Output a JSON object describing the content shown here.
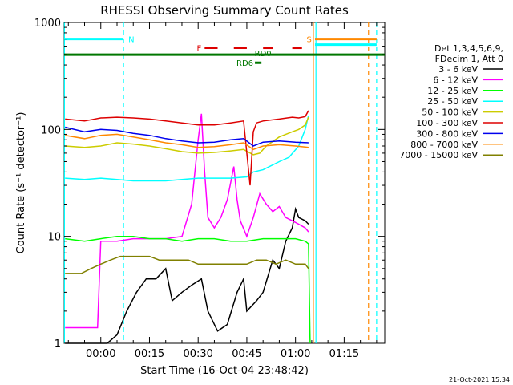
{
  "chart_data": {
    "type": "line",
    "title": "RHESSI Observing Summary Count Rates",
    "xlabel": "Start Time (16-Oct-04 23:48:42)",
    "ylabel": "Count Rate (s⁻¹ detector⁻¹)",
    "x_unit": "minutes after 00:00",
    "xlim": [
      -11.3,
      87.5
    ],
    "ylim": [
      1,
      1000
    ],
    "y_scale": "log",
    "x_tick_labels": [
      "00:00",
      "00:15",
      "00:30",
      "00:45",
      "01:00",
      "01:15"
    ],
    "x_ticks": [
      0,
      15,
      30,
      45,
      60,
      75
    ],
    "y_tick_labels": [
      "1",
      "10",
      "100",
      "1000"
    ],
    "y_ticks": [
      1,
      10,
      100,
      1000
    ],
    "legend": {
      "placement": "right",
      "header": [
        "Det 1,3,4,5,6,9,",
        "FDecim 1, Att 0"
      ]
    },
    "footer_date": "21-Oct-2021 15:34",
    "series": [
      {
        "name": "3 - 6 keV",
        "color": "#000000",
        "x": [
          -11,
          -6,
          -3,
          -1,
          2,
          5,
          8,
          11,
          14,
          17,
          20,
          22,
          25,
          28,
          31,
          33,
          36,
          39,
          42,
          44,
          45,
          48,
          50,
          53,
          55,
          57,
          59,
          60,
          61,
          63,
          64
        ],
        "y": [
          1,
          1,
          1,
          1,
          1,
          1.2,
          2,
          3,
          4,
          4,
          5,
          2.5,
          3,
          3.5,
          4,
          2,
          1.3,
          1.5,
          3,
          4,
          2,
          2.5,
          3,
          6,
          5,
          9,
          12,
          18,
          15,
          14,
          13
        ]
      },
      {
        "name": "6 - 12 keV",
        "color": "#ff00ff",
        "x": [
          -11,
          -5,
          -1,
          0,
          5,
          10,
          15,
          20,
          25,
          28,
          30,
          31,
          32,
          33,
          35,
          37,
          39,
          41,
          42,
          43,
          45,
          47,
          49,
          51,
          53,
          55,
          57,
          59,
          61,
          63,
          64
        ],
        "y": [
          1.4,
          1.4,
          1.4,
          9,
          9,
          9.5,
          9.5,
          9.5,
          10,
          20,
          80,
          140,
          40,
          15,
          12,
          15,
          22,
          45,
          22,
          14,
          10,
          15,
          25,
          20,
          17,
          19,
          15,
          14,
          13,
          12,
          11
        ]
      },
      {
        "name": "12 - 25 keV",
        "color": "#00ff00",
        "x": [
          -11,
          -5,
          0,
          5,
          10,
          15,
          20,
          25,
          30,
          35,
          40,
          45,
          50,
          55,
          60,
          63,
          64,
          64.5
        ],
        "y": [
          9.5,
          9,
          9.5,
          10,
          10,
          9.5,
          9.5,
          9,
          9.5,
          9.5,
          9,
          9,
          9.5,
          9.5,
          9.5,
          9,
          8.5,
          1
        ]
      },
      {
        "name": "25 - 50 keV",
        "color": "#00ffff",
        "x": [
          -11,
          -5,
          0,
          5,
          10,
          15,
          20,
          25,
          30,
          35,
          40,
          45,
          47,
          50,
          55,
          58,
          61,
          63,
          64
        ],
        "y": [
          35,
          34,
          35,
          34,
          33,
          33,
          33,
          34,
          35,
          35,
          35,
          36,
          40,
          42,
          50,
          55,
          70,
          100,
          135
        ]
      },
      {
        "name": "50 - 100 keV",
        "color": "#cccc00",
        "x": [
          -11,
          -5,
          0,
          5,
          10,
          15,
          20,
          25,
          30,
          35,
          40,
          44,
          47,
          49,
          51,
          55,
          59,
          61,
          63,
          64
        ],
        "y": [
          70,
          68,
          70,
          75,
          73,
          70,
          66,
          62,
          60,
          61,
          63,
          65,
          58,
          60,
          70,
          85,
          95,
          100,
          110,
          130
        ]
      },
      {
        "name": "100 - 300 keV",
        "color": "#dd0000",
        "x": [
          -11,
          -5,
          0,
          5,
          10,
          15,
          20,
          25,
          30,
          35,
          40,
          44,
          46,
          47,
          48,
          50,
          55,
          59,
          61,
          63,
          64
        ],
        "y": [
          125,
          120,
          128,
          130,
          128,
          125,
          120,
          115,
          110,
          110,
          115,
          120,
          30,
          95,
          115,
          120,
          125,
          130,
          128,
          132,
          150
        ]
      },
      {
        "name": "300 - 800 keV",
        "color": "#0000ee",
        "x": [
          -11,
          -5,
          0,
          5,
          10,
          15,
          20,
          25,
          30,
          35,
          40,
          44,
          47,
          50,
          55,
          60,
          64
        ],
        "y": [
          105,
          95,
          100,
          98,
          92,
          88,
          82,
          78,
          75,
          76,
          80,
          82,
          70,
          76,
          78,
          76,
          75
        ]
      },
      {
        "name": "800 - 7000 keV",
        "color": "#ff8800",
        "x": [
          -11,
          -5,
          0,
          5,
          10,
          15,
          20,
          25,
          30,
          35,
          40,
          44,
          47,
          50,
          55,
          60,
          64
        ],
        "y": [
          88,
          82,
          88,
          90,
          85,
          80,
          75,
          72,
          68,
          69,
          72,
          75,
          65,
          70,
          72,
          70,
          68
        ]
      },
      {
        "name": "7000 - 15000 keV",
        "color": "#808000",
        "x": [
          -11,
          -6,
          -3,
          0,
          3,
          6,
          9,
          12,
          15,
          18,
          21,
          24,
          27,
          30,
          33,
          36,
          39,
          42,
          45,
          48,
          51,
          54,
          57,
          60,
          63,
          64
        ],
        "y": [
          4.5,
          4.5,
          5,
          5.5,
          6,
          6.5,
          6.5,
          6.5,
          6.5,
          6,
          6,
          6,
          6,
          5.5,
          5.5,
          5.5,
          5.5,
          5.5,
          5.5,
          6,
          6,
          5.5,
          6,
          5.5,
          5.5,
          5
        ]
      }
    ],
    "flags": [
      {
        "label": "N",
        "color": "#00ffff",
        "y": 700,
        "x_start": -11.3,
        "x_end": 7,
        "segments": [
          [
            -11.3,
            7
          ]
        ],
        "label_x": 8.5,
        "label_side": "right"
      },
      {
        "label": "S",
        "color": "#ff8800",
        "y": 700,
        "x_start": 66,
        "x_end": 85,
        "segments": [
          [
            66,
            85
          ]
        ],
        "label_x": 65,
        "label_side": "left"
      },
      {
        "label": "",
        "color": "#00ffff",
        "y": 620,
        "x_start": 66,
        "x_end": 85,
        "segments": [
          [
            66,
            85
          ]
        ]
      },
      {
        "label": "F",
        "color": "#dd0000",
        "y": 580,
        "x_start": 32,
        "x_end": 62,
        "segments": [
          [
            32,
            36
          ],
          [
            41,
            45
          ],
          [
            50,
            53
          ],
          [
            59,
            62
          ]
        ],
        "label_x": 31,
        "label_side": "left"
      },
      {
        "label": "RD0",
        "color": "#007700",
        "y": 500,
        "x_start": -11.3,
        "x_end": 87.5,
        "segments": [
          [
            -11.3,
            87.5
          ]
        ],
        "label_x": 50,
        "label_side": "above"
      },
      {
        "label": "RD6",
        "color": "#007700",
        "y": 420,
        "x_start": 47.5,
        "x_end": 49.5,
        "segments": [
          [
            47.5,
            49.5
          ]
        ],
        "label_x": 47,
        "label_side": "left"
      }
    ],
    "vertical_markers": [
      {
        "x": -11.2,
        "color": "#00ffff",
        "style": "solid"
      },
      {
        "x": 7,
        "color": "#00ffff",
        "style": "dashed"
      },
      {
        "x": 65.5,
        "color": "#ff8800",
        "style": "solid"
      },
      {
        "x": 66.3,
        "color": "#00ffff",
        "style": "solid"
      },
      {
        "x": 82.5,
        "color": "#ff8800",
        "style": "dashed"
      },
      {
        "x": 85,
        "color": "#00ffff",
        "style": "dashed"
      }
    ]
  }
}
